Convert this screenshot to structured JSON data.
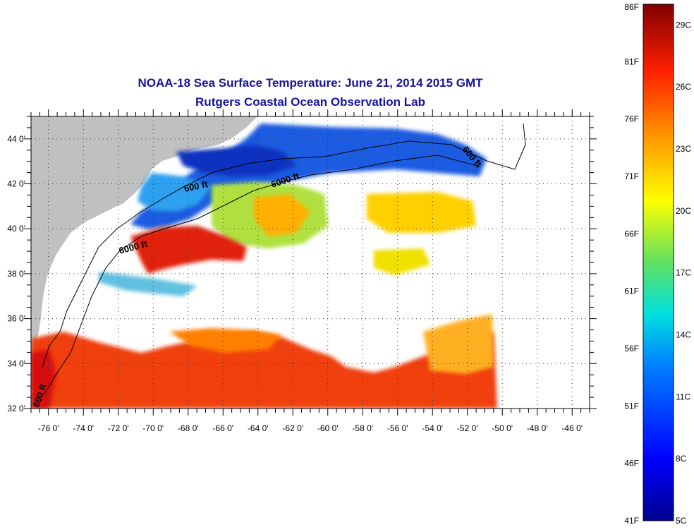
{
  "title": {
    "line1": "NOAA-18 Sea Surface Temperature:  June 21, 2014 2015 GMT",
    "line2": "Rutgers Coastal Ocean Observation Lab"
  },
  "colors": {
    "title": "#1414a0",
    "land": "#c0c0c0",
    "no_data": "#ffffff"
  },
  "map": {
    "lon_range": [
      -77,
      -45
    ],
    "lat_range": [
      32,
      45
    ],
    "grid": "dotted",
    "lon_ticks": [
      "-76 0'",
      "-74 0'",
      "-72 0'",
      "-70 0'",
      "-68 0'",
      "-66 0'",
      "-64 0'",
      "-62 0'",
      "-60 0'",
      "-58 0'",
      "-56 0'",
      "-54 0'",
      "-52 0'",
      "-50 0'",
      "-48 0'",
      "-46 0'"
    ],
    "lat_ticks": [
      "32 0'",
      "34 0'",
      "36 0'",
      "38 0'",
      "40 0'",
      "42 0'",
      "44 0'"
    ],
    "contour_labels": [
      "600 ft",
      "6000 ft",
      "6000 ft",
      "600 ft",
      "600 ft"
    ]
  },
  "colorbar": {
    "range_f": [
      41,
      86
    ],
    "fahrenheit_labels": [
      "86F",
      "81F",
      "76F",
      "71F",
      "66F",
      "61F",
      "56F",
      "51F",
      "46F",
      "41F"
    ],
    "celsius_labels": [
      "29C",
      "26C",
      "23C",
      "20C",
      "17C",
      "14C",
      "11C",
      "8C",
      "5C"
    ]
  }
}
